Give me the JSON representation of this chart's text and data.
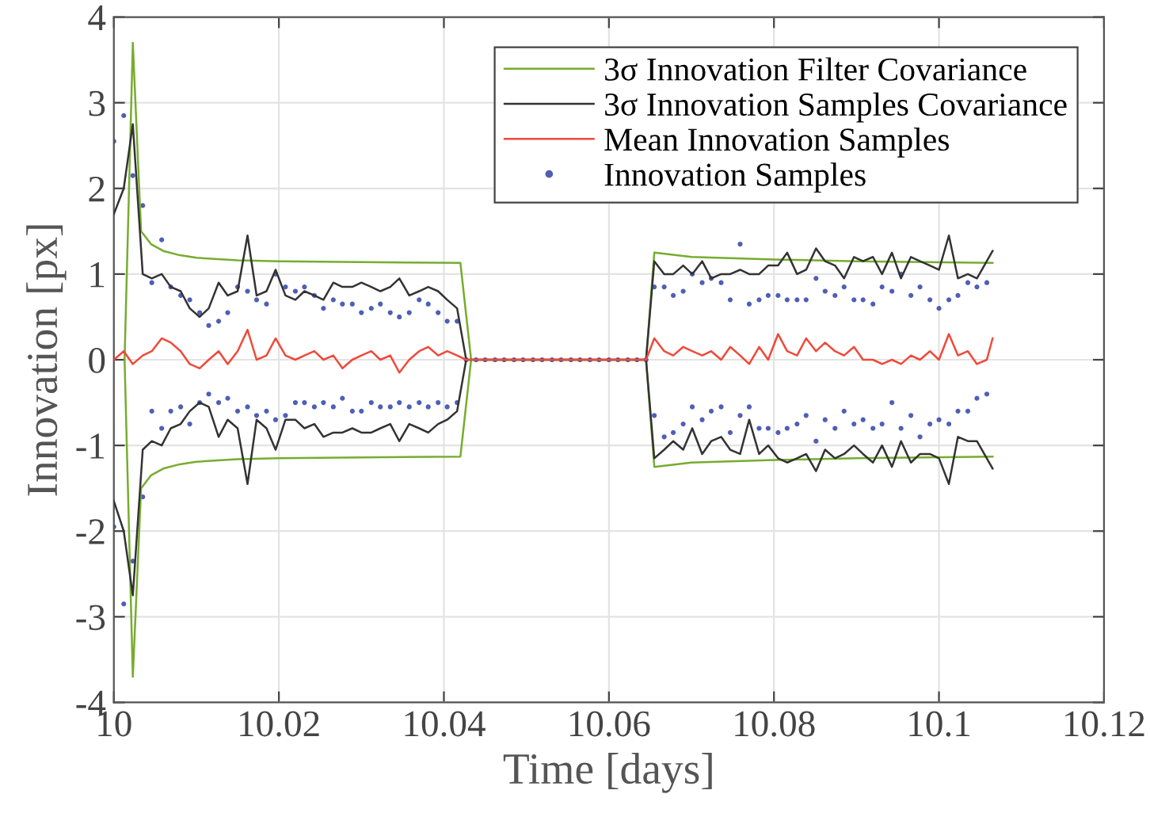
{
  "chart_data": {
    "type": "line",
    "xlabel": "Time [days]",
    "ylabel": "Innovation [px]",
    "xlim": [
      10,
      10.12
    ],
    "xticks": [
      10,
      10.02,
      10.04,
      10.06,
      10.08,
      10.1,
      10.12
    ],
    "ylim": [
      -4,
      4
    ],
    "yticks": [
      -4,
      -3,
      -2,
      -1,
      0,
      1,
      2,
      3,
      4
    ],
    "grid": true,
    "legend": "top right",
    "line_style": "solid",
    "series": [
      {
        "type": "scatter",
        "name": "Innovation Samples",
        "color": "#4f5fb5",
        "marker": "circle",
        "x": [
          10.0,
          10.0012,
          10.0023,
          10.0035,
          10.0046,
          10.0058,
          10.0069,
          10.0081,
          10.0092,
          10.0104,
          10.0115,
          10.0127,
          10.0138,
          10.015,
          10.0162,
          10.0173,
          10.0185,
          10.0196,
          10.0208,
          10.022,
          10.0231,
          10.0243,
          10.0254,
          10.0266,
          10.0277,
          10.0289,
          10.03,
          10.0312,
          10.0323,
          10.0335,
          10.0346,
          10.0358,
          10.037,
          10.0381,
          10.0393,
          10.0404,
          10.0416,
          10.0,
          10.0012,
          10.0023,
          10.0035,
          10.0046,
          10.0058,
          10.0069,
          10.0081,
          10.0092,
          10.0104,
          10.0115,
          10.0127,
          10.0138,
          10.015,
          10.0162,
          10.0173,
          10.0185,
          10.0196,
          10.0208,
          10.022,
          10.0231,
          10.0243,
          10.0254,
          10.0266,
          10.0277,
          10.0289,
          10.03,
          10.0312,
          10.0323,
          10.0335,
          10.0346,
          10.0358,
          10.037,
          10.0381,
          10.0393,
          10.0404,
          10.0416,
          10.0427,
          10.0439,
          10.045,
          10.0462,
          10.0473,
          10.0485,
          10.0496,
          10.0508,
          10.0519,
          10.0531,
          10.0542,
          10.0554,
          10.0565,
          10.0577,
          10.0588,
          10.06,
          10.0611,
          10.0623,
          10.0634,
          10.0645,
          10.0655,
          10.0667,
          10.0678,
          10.069,
          10.0701,
          10.0713,
          10.0724,
          10.0736,
          10.0747,
          10.0759,
          10.077,
          10.0782,
          10.0793,
          10.0805,
          10.0816,
          10.0828,
          10.0839,
          10.0851,
          10.0862,
          10.0874,
          10.0885,
          10.0897,
          10.0908,
          10.092,
          10.0931,
          10.0943,
          10.0954,
          10.0966,
          10.0977,
          10.0989,
          10.1,
          10.1012,
          10.1023,
          10.1035,
          10.1046,
          10.1058,
          10.0655,
          10.0667,
          10.0678,
          10.069,
          10.0701,
          10.0713,
          10.0724,
          10.0736,
          10.0747,
          10.0759,
          10.077,
          10.0782,
          10.0793,
          10.0805,
          10.0816,
          10.0828,
          10.0839,
          10.0851,
          10.0862,
          10.0874,
          10.0885,
          10.0897,
          10.0908,
          10.092,
          10.0931,
          10.0943,
          10.0954,
          10.0966,
          10.0977,
          10.0989,
          10.1,
          10.1012,
          10.1023,
          10.1035,
          10.1046,
          10.1058
        ],
        "values": [
          2.55,
          2.85,
          2.15,
          1.8,
          0.9,
          1.4,
          0.85,
          0.75,
          0.7,
          0.55,
          0.4,
          0.45,
          0.55,
          0.85,
          0.8,
          0.7,
          0.65,
          1.0,
          0.85,
          0.8,
          0.85,
          0.75,
          0.6,
          0.7,
          0.65,
          0.65,
          0.55,
          0.6,
          0.65,
          0.55,
          0.5,
          0.55,
          0.7,
          0.65,
          0.55,
          0.45,
          0.45,
          -1.95,
          -2.85,
          -2.35,
          -1.6,
          -0.6,
          -0.8,
          -0.6,
          -0.55,
          -0.75,
          -0.5,
          -0.4,
          -0.5,
          -0.45,
          -0.6,
          -0.55,
          -0.65,
          -0.6,
          -0.7,
          -0.65,
          -0.5,
          -0.5,
          -0.55,
          -0.5,
          -0.55,
          -0.45,
          -0.6,
          -0.6,
          -0.5,
          -0.55,
          -0.55,
          -0.5,
          -0.55,
          -0.5,
          -0.55,
          -0.5,
          -0.55,
          -0.5,
          0,
          0,
          0,
          0,
          0,
          0,
          0,
          0,
          0,
          0,
          0,
          0,
          0,
          0,
          0,
          0,
          0,
          0,
          0,
          0,
          0.85,
          0.85,
          0.75,
          0.8,
          1.0,
          0.9,
          0.95,
          0.9,
          0.7,
          1.35,
          0.65,
          0.7,
          0.75,
          0.75,
          0.7,
          0.7,
          0.7,
          0.95,
          0.8,
          0.75,
          0.85,
          0.7,
          0.7,
          0.65,
          0.85,
          0.8,
          1.0,
          0.75,
          0.85,
          0.7,
          0.6,
          0.7,
          0.75,
          0.9,
          0.85,
          0.9,
          -0.65,
          -0.9,
          -0.85,
          -0.75,
          -0.55,
          -0.7,
          -0.6,
          -0.55,
          -0.85,
          -0.65,
          -0.55,
          -0.8,
          -0.8,
          -0.85,
          -0.8,
          -0.75,
          -0.65,
          -0.95,
          -0.7,
          -0.8,
          -0.6,
          -0.75,
          -0.7,
          -0.8,
          -0.75,
          -0.5,
          -0.8,
          -0.65,
          -0.9,
          -0.75,
          -0.7,
          -0.75,
          -0.6,
          -0.6,
          -0.45,
          -0.4
        ]
      },
      {
        "name": "3σ Innovation Filter Covariance",
        "color": "#77ac30",
        "x": [
          10.0013,
          10.0023,
          10.0033,
          10.0045,
          10.006,
          10.008,
          10.01,
          10.015,
          10.02,
          10.03,
          10.042,
          10.0433,
          10.0645,
          10.0655,
          10.07,
          10.08,
          10.09,
          10.1065,
          null,
          10.0013,
          10.0023,
          10.0033,
          10.0045,
          10.006,
          10.008,
          10.01,
          10.015,
          10.02,
          10.03,
          10.042,
          10.0433,
          10.0645,
          10.0655,
          10.07,
          10.08,
          10.09,
          10.1065
        ],
        "values": [
          0,
          3.7,
          1.5,
          1.35,
          1.27,
          1.22,
          1.19,
          1.16,
          1.15,
          1.14,
          1.13,
          0,
          0,
          1.25,
          1.2,
          1.17,
          1.15,
          1.13,
          null,
          0,
          -3.7,
          -1.5,
          -1.35,
          -1.27,
          -1.22,
          -1.19,
          -1.16,
          -1.15,
          -1.14,
          -1.13,
          0,
          0,
          -1.25,
          -1.2,
          -1.17,
          -1.15,
          -1.13
        ]
      },
      {
        "name": "3σ Innovation Samples Covariance",
        "color": "#333333",
        "x": [
          10.0,
          10.0012,
          10.0023,
          10.0035,
          10.0046,
          10.0058,
          10.0069,
          10.0081,
          10.0092,
          10.0104,
          10.0115,
          10.0127,
          10.0138,
          10.015,
          10.0162,
          10.0173,
          10.0185,
          10.0196,
          10.0208,
          10.022,
          10.0231,
          10.0243,
          10.0254,
          10.0266,
          10.0277,
          10.0289,
          10.03,
          10.0312,
          10.0323,
          10.0335,
          10.0346,
          10.0358,
          10.037,
          10.0381,
          10.0393,
          10.0404,
          10.0416,
          10.0427,
          10.0645,
          10.0655,
          10.0667,
          10.0678,
          10.069,
          10.0701,
          10.0713,
          10.0724,
          10.0736,
          10.0747,
          10.0759,
          10.077,
          10.0782,
          10.0793,
          10.0805,
          10.0816,
          10.0828,
          10.0839,
          10.0851,
          10.0862,
          10.0874,
          10.0885,
          10.0897,
          10.0908,
          10.092,
          10.0931,
          10.0943,
          10.0954,
          10.0966,
          10.0977,
          10.0989,
          10.1,
          10.1012,
          10.1023,
          10.1035,
          10.1046,
          10.1065,
          null,
          10.0,
          10.0012,
          10.0023,
          10.0035,
          10.0046,
          10.0058,
          10.0069,
          10.0081,
          10.0092,
          10.0104,
          10.0115,
          10.0127,
          10.0138,
          10.015,
          10.0162,
          10.0173,
          10.0185,
          10.0196,
          10.0208,
          10.022,
          10.0231,
          10.0243,
          10.0254,
          10.0266,
          10.0277,
          10.0289,
          10.03,
          10.0312,
          10.0323,
          10.0335,
          10.0346,
          10.0358,
          10.037,
          10.0381,
          10.0393,
          10.0404,
          10.0416,
          10.0427,
          10.0645,
          10.0655,
          10.0667,
          10.0678,
          10.069,
          10.0701,
          10.0713,
          10.0724,
          10.0736,
          10.0747,
          10.0759,
          10.077,
          10.0782,
          10.0793,
          10.0805,
          10.0816,
          10.0828,
          10.0839,
          10.0851,
          10.0862,
          10.0874,
          10.0885,
          10.0897,
          10.0908,
          10.092,
          10.0931,
          10.0943,
          10.0954,
          10.0966,
          10.0977,
          10.0989,
          10.1,
          10.1012,
          10.1023,
          10.1035,
          10.1046,
          10.1065
        ],
        "values": [
          1.7,
          2.0,
          2.75,
          1.0,
          0.95,
          1.0,
          0.85,
          0.8,
          0.6,
          0.5,
          0.6,
          0.9,
          0.75,
          0.8,
          1.45,
          0.75,
          0.8,
          1.05,
          0.75,
          0.7,
          0.8,
          0.75,
          0.7,
          0.9,
          0.85,
          0.85,
          0.9,
          0.85,
          0.8,
          0.85,
          0.95,
          0.75,
          0.8,
          0.85,
          0.8,
          0.7,
          0.6,
          0,
          0,
          1.15,
          1.0,
          1.0,
          1.1,
          1.0,
          1.15,
          0.95,
          1.0,
          1.0,
          1.05,
          1.0,
          1.0,
          1.1,
          1.1,
          1.25,
          1.0,
          1.05,
          1.3,
          1.15,
          1.1,
          0.95,
          1.2,
          1.15,
          1.2,
          1.0,
          1.25,
          0.95,
          1.2,
          1.15,
          1.1,
          1.05,
          1.45,
          0.95,
          1.0,
          0.95,
          1.27,
          null,
          -1.65,
          -2.0,
          -2.75,
          -1.05,
          -0.95,
          -1.0,
          -0.8,
          -0.75,
          -0.6,
          -0.5,
          -0.55,
          -0.9,
          -0.7,
          -0.8,
          -1.45,
          -0.7,
          -0.8,
          -1.05,
          -0.7,
          -0.7,
          -0.8,
          -0.75,
          -0.9,
          -0.85,
          -0.85,
          -0.8,
          -0.85,
          -0.85,
          -0.8,
          -0.75,
          -0.95,
          -0.75,
          -0.8,
          -0.85,
          -0.75,
          -0.7,
          -0.6,
          0,
          0,
          -1.15,
          -1.05,
          -0.95,
          -1.05,
          -0.8,
          -1.1,
          -0.95,
          -0.9,
          -1.05,
          -1.1,
          -0.7,
          -1.1,
          -1.0,
          -1.15,
          -1.2,
          -1.15,
          -1.1,
          -1.3,
          -1.05,
          -1.15,
          -1.1,
          -1.0,
          -1.1,
          -1.2,
          -1.0,
          -1.25,
          -0.95,
          -1.2,
          -1.1,
          -1.1,
          -1.15,
          -1.45,
          -0.9,
          -0.95,
          -0.95,
          -1.27
        ]
      },
      {
        "name": "Mean Innovation Samples",
        "color": "#f0493a",
        "x": [
          10.0,
          10.0012,
          10.0023,
          10.0035,
          10.0046,
          10.0058,
          10.0069,
          10.0081,
          10.0092,
          10.0104,
          10.0115,
          10.0127,
          10.0138,
          10.015,
          10.0162,
          10.0173,
          10.0185,
          10.0196,
          10.0208,
          10.022,
          10.0231,
          10.0243,
          10.0254,
          10.0266,
          10.0277,
          10.0289,
          10.03,
          10.0312,
          10.0323,
          10.0335,
          10.0346,
          10.0358,
          10.037,
          10.0381,
          10.0393,
          10.0404,
          10.0416,
          10.0427,
          10.0645,
          10.0655,
          10.0667,
          10.0678,
          10.069,
          10.0701,
          10.0713,
          10.0724,
          10.0736,
          10.0747,
          10.0759,
          10.077,
          10.0782,
          10.0793,
          10.0805,
          10.0816,
          10.0828,
          10.0839,
          10.0851,
          10.0862,
          10.0874,
          10.0885,
          10.0897,
          10.0908,
          10.092,
          10.0931,
          10.0943,
          10.0954,
          10.0966,
          10.0977,
          10.0989,
          10.1,
          10.1012,
          10.1023,
          10.1035,
          10.1046,
          10.1058,
          10.1065
        ],
        "values": [
          0,
          0.1,
          -0.05,
          0.05,
          0.1,
          0.25,
          0.2,
          0.1,
          -0.05,
          -0.1,
          0,
          0.1,
          -0.05,
          0.1,
          0.35,
          0,
          0.05,
          0.25,
          0.05,
          0,
          0.05,
          0.1,
          0,
          0.05,
          -0.1,
          0,
          0.05,
          0.1,
          0,
          0.05,
          -0.15,
          0,
          0.1,
          0.15,
          0.05,
          0.1,
          0.05,
          0,
          0,
          0.25,
          0.1,
          0.05,
          0.15,
          0.1,
          0.05,
          0.1,
          0,
          0.15,
          0.05,
          -0.05,
          0.15,
          0,
          0.3,
          0.1,
          0.05,
          0.25,
          0.1,
          0.2,
          0.1,
          0.05,
          0.15,
          0,
          0,
          -0.05,
          0,
          -0.05,
          0.05,
          0,
          0.1,
          0,
          0.3,
          0.05,
          0.1,
          -0.05,
          0,
          0.25
        ]
      }
    ]
  }
}
